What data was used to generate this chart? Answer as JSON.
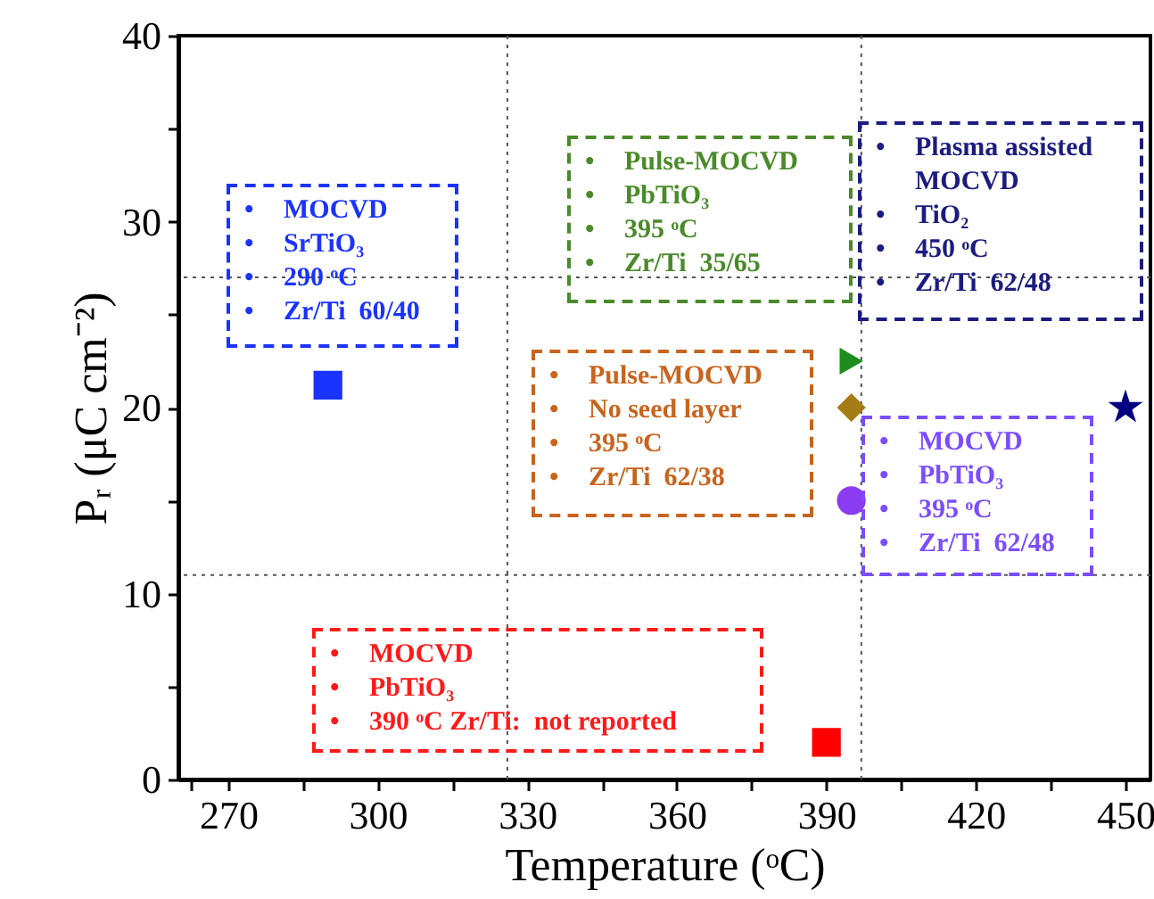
{
  "chart_data": {
    "type": "scatter",
    "xlabel": "Temperature (ᵒC)",
    "ylabel": "Pᵣ (μC cm⁻²)",
    "xlim": [
      260,
      455
    ],
    "ylim": [
      0,
      40
    ],
    "xticks": [
      {
        "value": 262.5,
        "label": null
      },
      270,
      {
        "value": 285,
        "label": null
      },
      300,
      {
        "value": 315,
        "label": null
      },
      330,
      {
        "value": 345,
        "label": null
      },
      360,
      {
        "value": 375,
        "label": null
      },
      390,
      {
        "value": 405,
        "label": null
      },
      420,
      {
        "value": 435,
        "label": null
      },
      450
    ],
    "yticks": [
      0,
      {
        "value": 5,
        "label": null
      },
      10,
      {
        "value": 15,
        "label": null
      },
      20,
      {
        "value": 25,
        "label": null
      },
      30,
      {
        "value": 35,
        "label": null
      },
      40
    ],
    "grid": false,
    "series": [
      {
        "color": "#1a33ff",
        "marker": "square",
        "x": [
          290
        ],
        "values": [
          21.2
        ]
      },
      {
        "color": "#1e8c1e",
        "marker": "triangle",
        "x": [
          395
        ],
        "values": [
          22.5
        ]
      },
      {
        "color": "#a67c14",
        "marker": "diamond",
        "x": [
          395
        ],
        "values": [
          20
        ]
      },
      {
        "color": "#8c3cf0",
        "marker": "circle",
        "x": [
          395
        ],
        "values": [
          15
        ]
      },
      {
        "color": "#ff0000",
        "marker": "square",
        "x": [
          390
        ],
        "values": [
          2
        ]
      },
      {
        "color": "#000080",
        "marker": "star",
        "x": [
          450
        ],
        "values": [
          20
        ]
      }
    ],
    "ref_lines": [
      {
        "axis": "x",
        "value": 326,
        "color": "#555555",
        "line_style": "dotted"
      },
      {
        "axis": "x",
        "value": 397,
        "color": "#555555",
        "line_style": "dotted"
      },
      {
        "axis": "y",
        "value": 27,
        "color": "#555555",
        "line_style": "dotted"
      },
      {
        "axis": "y",
        "value": 11,
        "color": "#555555",
        "line_style": "dotted"
      }
    ],
    "annotations": [
      "• MOCVD\n• SrTiO₃\n• 290 ᵒC\n• Zr/Ti  60/40",
      "• Pulse-MOCVD\n• PbTiO₃\n• 395 ᵒC\n• Zr/Ti  35/65",
      "• Pulse-MOCVD\n• No seed layer\n• 395 ᵒC\n• Zr/Ti  62/38",
      "• MOCVD\n• PbTiO₃\n• 395 ᵒC\n• Zr/Ti  62/48",
      "• MOCVD\n• PbTiO₃\n• 390 ᵒC Zr/Ti:  not reported",
      "• Plasma assisted MOCVD\n• TiO₂\n• 450 ᵒC\n• Zr/Ti  62/48"
    ]
  }
}
